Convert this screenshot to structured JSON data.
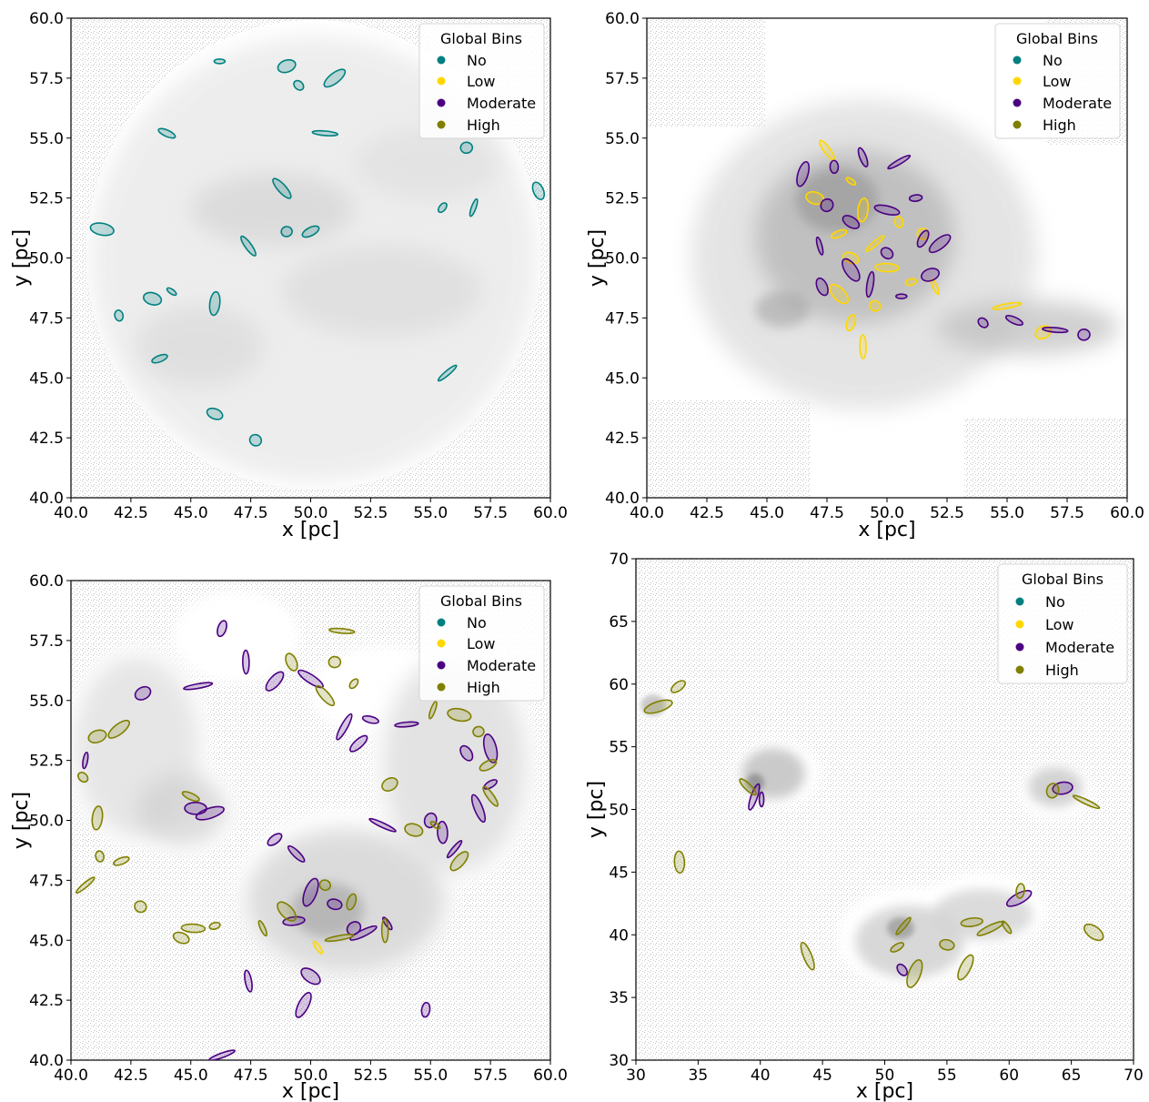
{
  "chart_data": [
    {
      "type": "contour-map",
      "xlabel": "x [pc]",
      "ylabel": "y [pc]",
      "xlim": [
        40,
        60
      ],
      "ylim": [
        40,
        60
      ],
      "xticks": [
        "40.0",
        "42.5",
        "45.0",
        "47.5",
        "50.0",
        "52.5",
        "55.0",
        "57.5",
        "60.0"
      ],
      "yticks": [
        "40.0",
        "42.5",
        "45.0",
        "47.5",
        "50.0",
        "52.5",
        "55.0",
        "57.5",
        "60.0"
      ],
      "legend": {
        "title": "Global Bins",
        "placement": "top-right",
        "entries": [
          "No",
          "Low",
          "Moderate",
          "High"
        ]
      },
      "series": [
        {
          "name": "No",
          "color": "#008080",
          "points": [
            [
              46.2,
              58.2
            ],
            [
              49,
              58
            ],
            [
              51,
              57.5
            ],
            [
              49.5,
              57.2
            ],
            [
              44,
              55.2
            ],
            [
              50.6,
              55.2
            ],
            [
              56.5,
              54.6
            ],
            [
              59.5,
              52.8
            ],
            [
              48.8,
              52.9
            ],
            [
              55.5,
              52.1
            ],
            [
              56.8,
              52.1
            ],
            [
              41.3,
              51.2
            ],
            [
              49,
              51.1
            ],
            [
              50,
              51.1
            ],
            [
              47.4,
              50.5
            ],
            [
              44.2,
              48.6
            ],
            [
              43.4,
              48.3
            ],
            [
              46,
              48.1
            ],
            [
              42,
              47.6
            ],
            [
              43.7,
              45.8
            ],
            [
              55.7,
              45.2
            ],
            [
              47.7,
              42.4
            ],
            [
              46,
              43.5
            ]
          ]
        },
        {
          "name": "Low",
          "color": "#ffd700",
          "points": []
        },
        {
          "name": "Moderate",
          "color": "#4b0082",
          "points": []
        },
        {
          "name": "High",
          "color": "#808000",
          "points": []
        }
      ]
    },
    {
      "type": "contour-map",
      "xlabel": "x [pc]",
      "ylabel": "y [pc]",
      "xlim": [
        40,
        60
      ],
      "ylim": [
        40,
        60
      ],
      "xticks": [
        "40.0",
        "42.5",
        "45.0",
        "47.5",
        "50.0",
        "52.5",
        "55.0",
        "57.5",
        "60.0"
      ],
      "yticks": [
        "40.0",
        "42.5",
        "45.0",
        "47.5",
        "50.0",
        "52.5",
        "55.0",
        "57.5",
        "60.0"
      ],
      "legend": {
        "title": "Global Bins",
        "placement": "top-right",
        "entries": [
          "No",
          "Low",
          "Moderate",
          "High"
        ]
      },
      "series": [
        {
          "name": "No",
          "color": "#008080",
          "points": []
        },
        {
          "name": "Low",
          "color": "#ffd700",
          "points": [
            [
              47.5,
              54.5
            ],
            [
              48.5,
              53.2
            ],
            [
              47,
              52.5
            ],
            [
              49,
              52
            ],
            [
              50.5,
              51.5
            ],
            [
              48,
              51
            ],
            [
              49.5,
              50.6
            ],
            [
              51.5,
              51
            ],
            [
              48.5,
              50
            ],
            [
              50,
              49.6
            ],
            [
              51,
              49
            ],
            [
              52,
              48.8
            ],
            [
              48,
              48.5
            ],
            [
              49.5,
              48
            ],
            [
              48.5,
              47.3
            ],
            [
              49,
              46.3
            ],
            [
              55,
              48
            ],
            [
              56.5,
              46.9
            ]
          ]
        },
        {
          "name": "Moderate",
          "color": "#4b0082",
          "points": [
            [
              46.5,
              53.5
            ],
            [
              47.8,
              53.8
            ],
            [
              49,
              54.2
            ],
            [
              50.5,
              54
            ],
            [
              47.5,
              52.2
            ],
            [
              48.5,
              51.5
            ],
            [
              50,
              52
            ],
            [
              51.2,
              52.5
            ],
            [
              47.2,
              50.5
            ],
            [
              48.5,
              49.5
            ],
            [
              50,
              50.2
            ],
            [
              51.5,
              50.8
            ],
            [
              49.3,
              48.9
            ],
            [
              50.6,
              48.4
            ],
            [
              51.8,
              49.3
            ],
            [
              52.2,
              50.6
            ],
            [
              54,
              47.3
            ],
            [
              55.3,
              47.4
            ],
            [
              57,
              47
            ],
            [
              58.2,
              46.8
            ],
            [
              47.3,
              48.8
            ]
          ]
        },
        {
          "name": "High",
          "color": "#808000",
          "points": []
        }
      ]
    },
    {
      "type": "contour-map",
      "xlabel": "x [pc]",
      "ylabel": "y [pc]",
      "xlim": [
        40,
        60
      ],
      "ylim": [
        40,
        60
      ],
      "xticks": [
        "40.0",
        "42.5",
        "45.0",
        "47.5",
        "50.0",
        "52.5",
        "55.0",
        "57.5",
        "60.0"
      ],
      "yticks": [
        "40.0",
        "42.5",
        "45.0",
        "47.5",
        "50.0",
        "52.5",
        "55.0",
        "57.5",
        "60.0"
      ],
      "legend": {
        "title": "Global Bins",
        "placement": "top-right",
        "entries": [
          "No",
          "Low",
          "Moderate",
          "High"
        ]
      },
      "series": [
        {
          "name": "No",
          "color": "#008080",
          "points": []
        },
        {
          "name": "Low",
          "color": "#ffd700",
          "points": [
            [
              50.3,
              44.7
            ]
          ]
        },
        {
          "name": "Moderate",
          "color": "#4b0082",
          "points": [
            [
              46.3,
              58
            ],
            [
              47.3,
              56.6
            ],
            [
              45.3,
              55.6
            ],
            [
              43,
              55.3
            ],
            [
              48.5,
              55.8
            ],
            [
              50,
              55.9
            ],
            [
              52.5,
              54.2
            ],
            [
              54,
              54
            ],
            [
              57.5,
              53
            ],
            [
              56.5,
              52.8
            ],
            [
              52,
              53.2
            ],
            [
              51.4,
              53.9
            ],
            [
              40.6,
              52.5
            ],
            [
              45.2,
              50.5
            ],
            [
              45.8,
              50.3
            ],
            [
              48.5,
              49.2
            ],
            [
              49.4,
              48.6
            ],
            [
              53,
              49.8
            ],
            [
              55,
              50
            ],
            [
              55.5,
              49.5
            ],
            [
              57,
              50.5
            ],
            [
              57.5,
              51.5
            ],
            [
              56,
              48.8
            ],
            [
              50,
              47
            ],
            [
              51,
              46.5
            ],
            [
              49.3,
              45.8
            ],
            [
              52.2,
              45.3
            ],
            [
              53.2,
              45.7
            ],
            [
              50,
              43.5
            ],
            [
              49.7,
              42.3
            ],
            [
              54.8,
              42.1
            ],
            [
              47.4,
              43.3
            ],
            [
              46.3,
              40.2
            ],
            [
              51.8,
              45.5
            ]
          ]
        },
        {
          "name": "High",
          "color": "#808000",
          "points": [
            [
              41.1,
              53.5
            ],
            [
              42,
              53.8
            ],
            [
              40.5,
              51.8
            ],
            [
              45,
              51
            ],
            [
              51.3,
              57.9
            ],
            [
              51,
              56.6
            ],
            [
              49.2,
              56.6
            ],
            [
              50.6,
              55.2
            ],
            [
              51.8,
              55.7
            ],
            [
              55.1,
              54.6
            ],
            [
              56.2,
              54.4
            ],
            [
              57,
              53.7
            ],
            [
              57.4,
              52.3
            ],
            [
              57.5,
              51
            ],
            [
              55.2,
              49.8
            ],
            [
              54.3,
              49.6
            ],
            [
              41.1,
              50.1
            ],
            [
              41.2,
              48.5
            ],
            [
              42.1,
              48.3
            ],
            [
              40.6,
              47.3
            ],
            [
              42.9,
              46.4
            ],
            [
              44.6,
              45.1
            ],
            [
              45.1,
              45.5
            ],
            [
              46,
              45.6
            ],
            [
              48,
              45.5
            ],
            [
              49,
              46.2
            ],
            [
              50.6,
              47.3
            ],
            [
              51.7,
              46.6
            ],
            [
              53.1,
              45.4
            ],
            [
              51.2,
              45.1
            ],
            [
              53.3,
              51.5
            ],
            [
              56.2,
              48.3
            ]
          ]
        }
      ]
    },
    {
      "type": "contour-map",
      "xlabel": "x [pc]",
      "ylabel": "y [pc]",
      "xlim": [
        30,
        70
      ],
      "ylim": [
        30,
        70
      ],
      "xticks": [
        "30",
        "35",
        "40",
        "45",
        "50",
        "55",
        "60",
        "65",
        "70"
      ],
      "yticks": [
        "30",
        "35",
        "40",
        "45",
        "50",
        "55",
        "60",
        "65",
        "70"
      ],
      "legend": {
        "title": "Global Bins",
        "placement": "top-right",
        "entries": [
          "No",
          "Low",
          "Moderate",
          "High"
        ]
      },
      "series": [
        {
          "name": "No",
          "color": "#008080",
          "points": []
        },
        {
          "name": "Low",
          "color": "#ffd700",
          "points": []
        },
        {
          "name": "Moderate",
          "color": "#4b0082",
          "points": [
            [
              39.5,
              51
            ],
            [
              40.1,
              50.8
            ],
            [
              64.3,
              51.7
            ],
            [
              60.8,
              42.9
            ],
            [
              51.4,
              37.2
            ]
          ]
        },
        {
          "name": "High",
          "color": "#808000",
          "points": [
            [
              31.8,
              58.2
            ],
            [
              33.4,
              59.8
            ],
            [
              39,
              51.8
            ],
            [
              66.2,
              50.6
            ],
            [
              63.5,
              51.5
            ],
            [
              33.5,
              45.8
            ],
            [
              43.8,
              38.3
            ],
            [
              51,
              39
            ],
            [
              51.5,
              40.7
            ],
            [
              52.4,
              36.9
            ],
            [
              55,
              39.2
            ],
            [
              57,
              41
            ],
            [
              58.5,
              40.5
            ],
            [
              59.8,
              40.6
            ],
            [
              66.8,
              40.2
            ],
            [
              56.5,
              37.4
            ],
            [
              60.9,
              43.5
            ]
          ]
        }
      ]
    }
  ]
}
